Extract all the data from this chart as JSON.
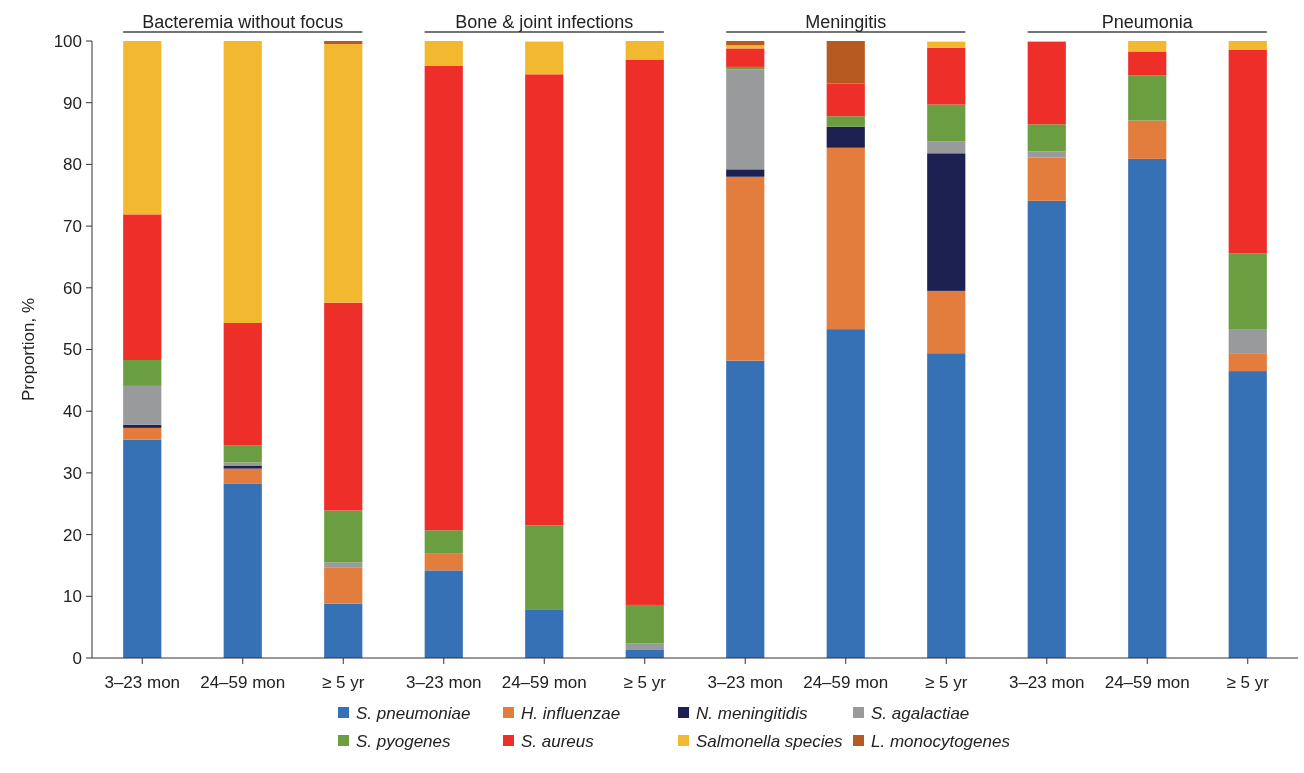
{
  "chart_data": {
    "type": "bar",
    "stacked": true,
    "ylabel": "Proportion, %",
    "ylim": [
      0,
      100
    ],
    "yticks": [
      0,
      10,
      20,
      30,
      40,
      50,
      60,
      70,
      80,
      90,
      100
    ],
    "legend": "bottom",
    "grid": false,
    "categories": [
      "3–23 mon",
      "24–59 mon",
      "≥ 5 yr",
      "3–23 mon",
      "24–59 mon",
      "≥ 5 yr",
      "3–23 mon",
      "24–59 mon",
      "≥ 5 yr",
      "3–23 mon",
      "24–59 mon",
      "≥ 5 yr"
    ],
    "annotations": [
      "Bacteremia without focus",
      "Bone & joint infections",
      "Meningitis",
      "Pneumonia"
    ],
    "series": [
      {
        "name": "S. pneumoniae",
        "color": "#3670b5",
        "values": [
          35.4,
          28.3,
          8.8,
          14.2,
          7.9,
          1.4,
          48.2,
          53.3,
          49.4,
          74.1,
          80.9,
          46.5
        ]
      },
      {
        "name": "H. influenzae",
        "color": "#e27d3d",
        "values": [
          1.9,
          2.4,
          5.9,
          2.8,
          0,
          0,
          29.8,
          29.4,
          10.1,
          7.0,
          6.2,
          2.9
        ]
      },
      {
        "name": "N. meningitidis",
        "color": "#1d2152",
        "values": [
          0.5,
          0.5,
          0,
          0,
          0,
          0,
          1.2,
          3.4,
          22.3,
          0,
          0,
          0
        ]
      },
      {
        "name": "S. agalactiae",
        "color": "#989a9b",
        "values": [
          6.3,
          0.5,
          0.8,
          0,
          0,
          1.0,
          16.2,
          0,
          1.9,
          1.0,
          0,
          3.9
        ]
      },
      {
        "name": "S. pyogenes",
        "color": "#6a9e40",
        "values": [
          4.2,
          2.8,
          8.4,
          3.7,
          13.6,
          6.2,
          0.4,
          1.7,
          6.0,
          4.4,
          7.3,
          12.3
        ]
      },
      {
        "name": "S. aureus",
        "color": "#ed2e29",
        "values": [
          23.6,
          19.8,
          33.7,
          75.3,
          73.1,
          88.4,
          3.0,
          5.3,
          9.2,
          13.4,
          3.9,
          33.0
        ]
      },
      {
        "name": "Salmonella species",
        "color": "#f2b830",
        "values": [
          28.1,
          45.7,
          41.9,
          4.0,
          5.3,
          3.0,
          0.5,
          0,
          1.0,
          0,
          1.7,
          1.4
        ]
      },
      {
        "name": "L. monocytogenes",
        "color": "#b65a22",
        "values": [
          0,
          0,
          0.5,
          0,
          0,
          0,
          0.7,
          6.9,
          0,
          0,
          0,
          0
        ]
      }
    ]
  }
}
